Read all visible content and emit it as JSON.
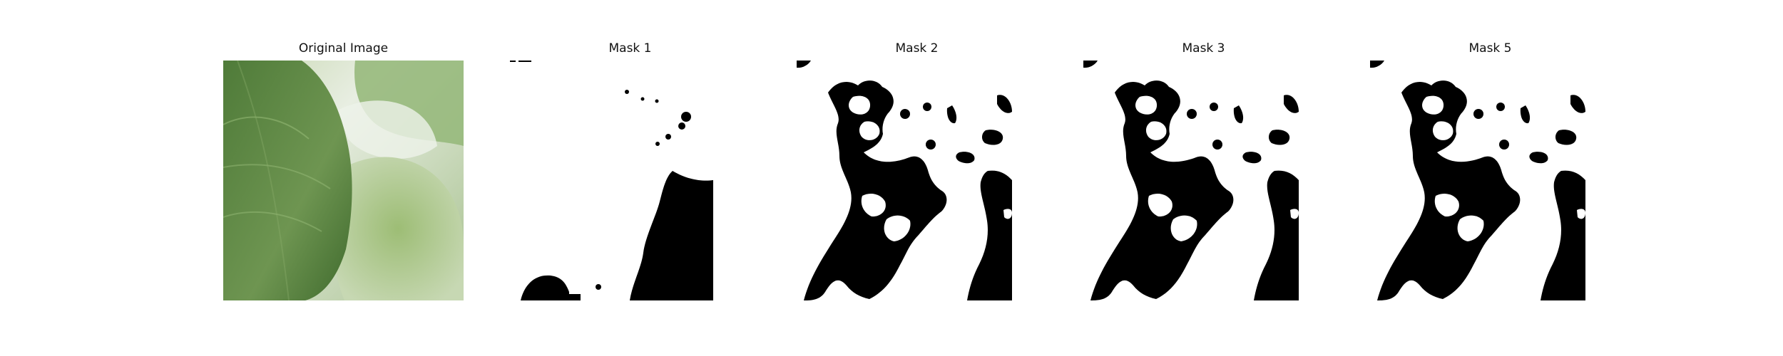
{
  "panels": [
    {
      "title": "Original Image",
      "kind": "photo",
      "icon": "leaf-photo"
    },
    {
      "title": "Mask 1",
      "kind": "mask",
      "icon": "mask-shape"
    },
    {
      "title": "Mask 2",
      "kind": "mask",
      "icon": "mask-shape"
    },
    {
      "title": "Mask 3",
      "kind": "mask",
      "icon": "mask-shape"
    },
    {
      "title": "Mask 5",
      "kind": "mask",
      "icon": "mask-shape"
    }
  ],
  "colors": {
    "background": "#ffffff",
    "mask_fg": "#000000",
    "mask_bg": "#ffffff",
    "leaf_dark": "#3f6a2d",
    "leaf_light": "#9cbf7c",
    "sky_light": "#eef2ea"
  }
}
